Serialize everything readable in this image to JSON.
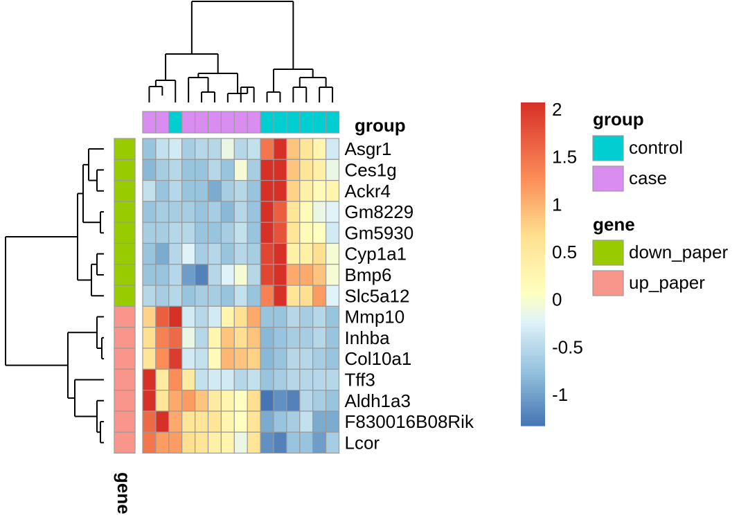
{
  "chart_data": {
    "type": "heatmap",
    "rows": [
      "Asgr1",
      "Ces1g",
      "Ackr4",
      "Gm8229",
      "Gm5930",
      "Cyp1a1",
      "Bmp6",
      "Slc5a12",
      "Mmp10",
      "Inhba",
      "Col10a1",
      "Tff3",
      "Aldh1a3",
      "F830016B08Rik",
      "Lcor"
    ],
    "column_count": 15,
    "values": [
      [
        -0.8,
        -0.5,
        -0.4,
        -0.7,
        -0.6,
        -0.6,
        -0.2,
        -0.6,
        -0.5,
        1.4,
        2.0,
        0.8,
        0.5,
        0.2,
        -0.4
      ],
      [
        -0.9,
        -0.7,
        -0.6,
        -0.8,
        -0.8,
        -0.6,
        -0.8,
        -0.1,
        -0.7,
        2.0,
        2.0,
        0.8,
        0.5,
        0.3,
        -0.2
      ],
      [
        -0.5,
        -0.8,
        -0.6,
        -0.8,
        -0.8,
        -1.0,
        -0.7,
        -0.6,
        -0.8,
        2.0,
        2.0,
        0.7,
        0.3,
        0.1,
        0.2
      ],
      [
        -0.8,
        -0.7,
        -0.7,
        -0.7,
        -0.8,
        -0.7,
        -0.9,
        -0.6,
        -0.8,
        2.0,
        1.6,
        0.5,
        0.1,
        -0.2,
        -0.3
      ],
      [
        -0.7,
        -0.7,
        -0.6,
        -0.6,
        -0.8,
        -0.8,
        -0.7,
        -0.5,
        -0.8,
        2.0,
        1.7,
        0.5,
        0.1,
        0.0,
        -0.4
      ],
      [
        -0.8,
        -1.0,
        -0.6,
        -0.3,
        -0.7,
        -0.6,
        -0.8,
        -0.6,
        -0.7,
        1.8,
        2.0,
        0.3,
        0.3,
        0.6,
        -0.1
      ],
      [
        -0.8,
        -0.8,
        -0.6,
        -1.1,
        -1.3,
        -0.6,
        -0.3,
        -0.1,
        -0.6,
        1.8,
        2.0,
        1.0,
        1.0,
        0.8,
        -0.1
      ],
      [
        -0.6,
        -0.7,
        -0.6,
        -0.8,
        -0.7,
        -0.7,
        -0.8,
        -0.5,
        -0.8,
        1.3,
        2.0,
        0.5,
        0.6,
        1.1,
        -0.3
      ],
      [
        0.7,
        1.6,
        2.0,
        -0.4,
        -0.6,
        -0.4,
        0.2,
        0.6,
        1.0,
        -0.8,
        -0.8,
        -0.6,
        -0.7,
        -0.6,
        -0.8
      ],
      [
        0.6,
        1.3,
        1.5,
        -0.2,
        -0.6,
        0.2,
        0.8,
        0.6,
        0.8,
        -0.9,
        -0.8,
        -0.7,
        -0.7,
        -0.6,
        -0.8
      ],
      [
        0.5,
        1.2,
        1.9,
        -0.4,
        -0.5,
        0.1,
        0.9,
        0.8,
        0.7,
        -0.9,
        -0.8,
        -0.6,
        -0.6,
        -0.7,
        -0.8
      ],
      [
        2.0,
        0.4,
        1.2,
        0.4,
        -0.5,
        -0.4,
        -0.4,
        -0.6,
        -0.5,
        -0.8,
        -0.7,
        -0.6,
        -0.6,
        -0.6,
        -0.6
      ],
      [
        2.0,
        0.5,
        1.0,
        1.1,
        0.8,
        0.4,
        0.2,
        0.0,
        0.6,
        -1.4,
        -1.2,
        -1.3,
        -0.6,
        -0.7,
        -0.8
      ],
      [
        1.5,
        2.0,
        1.0,
        0.5,
        0.5,
        0.5,
        0.2,
        0.0,
        0.5,
        -1.0,
        -0.8,
        -0.7,
        -0.5,
        -1.0,
        -1.0
      ],
      [
        1.4,
        1.1,
        1.1,
        0.6,
        0.5,
        0.3,
        0.2,
        -0.2,
        0.5,
        -1.2,
        -1.3,
        -0.8,
        -0.8,
        -1.1,
        -0.7
      ]
    ],
    "column_annotation": {
      "title": "group",
      "values": [
        "case",
        "case",
        "control",
        "case",
        "case",
        "case",
        "case",
        "case",
        "case",
        "control",
        "control",
        "control",
        "control",
        "control",
        "control"
      ]
    },
    "row_annotation": {
      "title": "gene",
      "values": [
        "down_paper",
        "down_paper",
        "down_paper",
        "down_paper",
        "down_paper",
        "down_paper",
        "down_paper",
        "down_paper",
        "up_paper",
        "up_paper",
        "up_paper",
        "up_paper",
        "up_paper",
        "up_paper",
        "up_paper"
      ]
    },
    "color_scale": {
      "range": [
        -1.4,
        2.0
      ],
      "stops": [
        {
          "value": -1.4,
          "color": "#4575b4"
        },
        {
          "value": -0.85,
          "color": "#91bfdb"
        },
        {
          "value": -0.3,
          "color": "#e0f3f8"
        },
        {
          "value": 0.0,
          "color": "#ffffbf"
        },
        {
          "value": 0.6,
          "color": "#fee090"
        },
        {
          "value": 1.2,
          "color": "#fc8d59"
        },
        {
          "value": 2.0,
          "color": "#d73027"
        }
      ],
      "ticks": [
        2,
        1.5,
        1,
        0.5,
        0,
        -0.5,
        -1
      ],
      "tick_labels": [
        "2",
        "1.5",
        "1",
        "0.5",
        "0",
        "-0.5",
        "-1"
      ]
    },
    "legend": {
      "group": {
        "title": "group",
        "items": [
          {
            "label": "control",
            "color": "#00ced1"
          },
          {
            "label": "case",
            "color": "#da8df0"
          }
        ]
      },
      "gene": {
        "title": "gene",
        "items": [
          {
            "label": "down_paper",
            "color": "#99cc00"
          },
          {
            "label": "up_paper",
            "color": "#f9968b"
          }
        ]
      }
    },
    "grid": true
  }
}
